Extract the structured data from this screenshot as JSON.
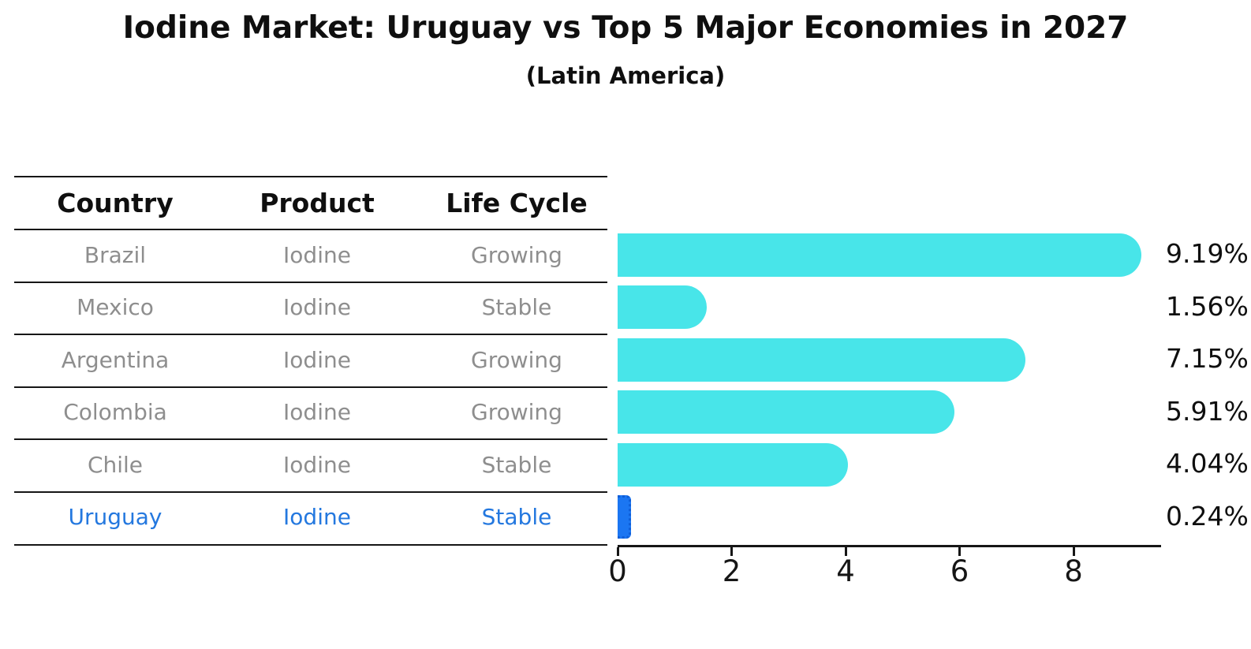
{
  "header": {
    "title": "Iodine Market: Uruguay vs Top 5 Major Economies in 2027",
    "subtitle": "(Latin America)"
  },
  "table": {
    "columns": [
      "Country",
      "Product",
      "Life Cycle"
    ],
    "rows": [
      {
        "country": "Brazil",
        "product": "Iodine",
        "life_cycle": "Growing",
        "highlight": false
      },
      {
        "country": "Mexico",
        "product": "Iodine",
        "life_cycle": "Stable",
        "highlight": false
      },
      {
        "country": "Argentina",
        "product": "Iodine",
        "life_cycle": "Growing",
        "highlight": false
      },
      {
        "country": "Colombia",
        "product": "Iodine",
        "life_cycle": "Growing",
        "highlight": false
      },
      {
        "country": "Chile",
        "product": "Iodine",
        "life_cycle": "Stable",
        "highlight": false
      },
      {
        "country": "Uruguay",
        "product": "Iodine",
        "life_cycle": "Stable",
        "highlight": true
      }
    ]
  },
  "chart_data": {
    "type": "bar",
    "orientation": "horizontal",
    "title": "Iodine Market: Uruguay vs Top 5 Major Economies in 2027",
    "subtitle": "(Latin America)",
    "categories": [
      "Brazil",
      "Mexico",
      "Argentina",
      "Colombia",
      "Chile",
      "Uruguay"
    ],
    "values": [
      9.19,
      1.56,
      7.15,
      5.91,
      4.04,
      0.24
    ],
    "value_labels": [
      "9.19%",
      "1.56%",
      "7.15%",
      "5.91%",
      "4.04%",
      "0.24%"
    ],
    "xlabel": "",
    "ylabel": "",
    "x_ticks": [
      0,
      2,
      4,
      6,
      8
    ],
    "xlim": [
      0,
      9.54
    ],
    "grid": false,
    "legend": false,
    "highlight_category": "Uruguay",
    "bar_color_default": "#48e5e9",
    "bar_color_highlight": "#1b76f2"
  },
  "colors": {
    "bar_cyan": "#48e5e9",
    "bar_blue": "#1b76f2",
    "text_blue": "#2478df",
    "text_gray": "#8e8e8e",
    "text_dark": "#0f0f0f",
    "axis_black": "#161616",
    "background": "#ffffff"
  }
}
